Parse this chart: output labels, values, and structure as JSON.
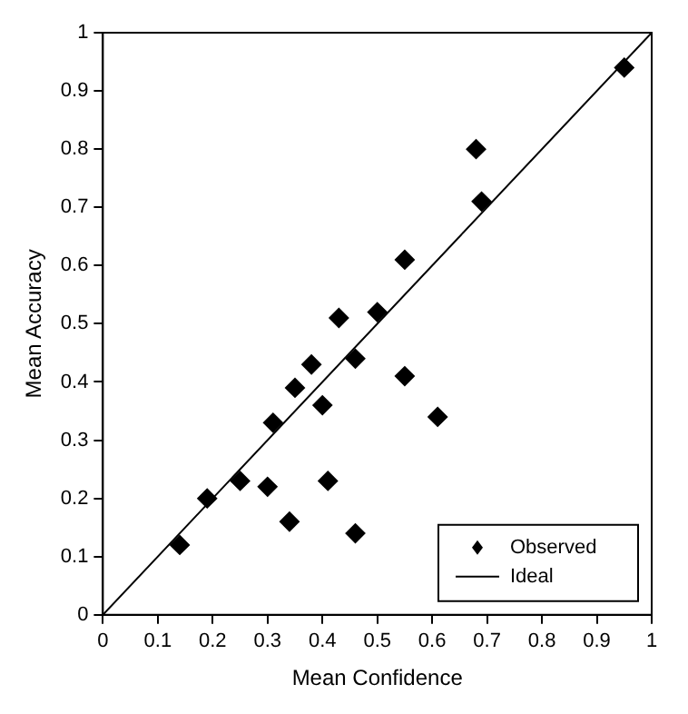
{
  "chart_data": {
    "type": "scatter",
    "xlabel": "Mean Confidence",
    "ylabel": "Mean Accuracy",
    "xlim": [
      0,
      1
    ],
    "ylim": [
      0,
      1
    ],
    "xticks": [
      0,
      0.1,
      0.2,
      0.3,
      0.4,
      0.5,
      0.6,
      0.7,
      0.8,
      0.9,
      1
    ],
    "yticks": [
      0,
      0.1,
      0.2,
      0.3,
      0.4,
      0.5,
      0.6,
      0.7,
      0.8,
      0.9,
      1
    ],
    "grid": false,
    "legend": "bottom right",
    "series": [
      {
        "name": "Observed",
        "marker": "diamond",
        "color": "#000000",
        "x": [
          0.95,
          0.68,
          0.69,
          0.55,
          0.43,
          0.5,
          0.55,
          0.61,
          0.46,
          0.38,
          0.35,
          0.4,
          0.31,
          0.25,
          0.3,
          0.19,
          0.14,
          0.34,
          0.41,
          0.46
        ],
        "values": [
          0.94,
          0.8,
          0.71,
          0.61,
          0.51,
          0.52,
          0.41,
          0.34,
          0.44,
          0.43,
          0.39,
          0.36,
          0.33,
          0.23,
          0.22,
          0.2,
          0.12,
          0.16,
          0.23,
          0.14
        ]
      },
      {
        "name": "Ideal",
        "type": "line",
        "marker": "none",
        "color": "#000000",
        "x": [
          0,
          1
        ],
        "values": [
          0,
          1
        ]
      }
    ]
  }
}
